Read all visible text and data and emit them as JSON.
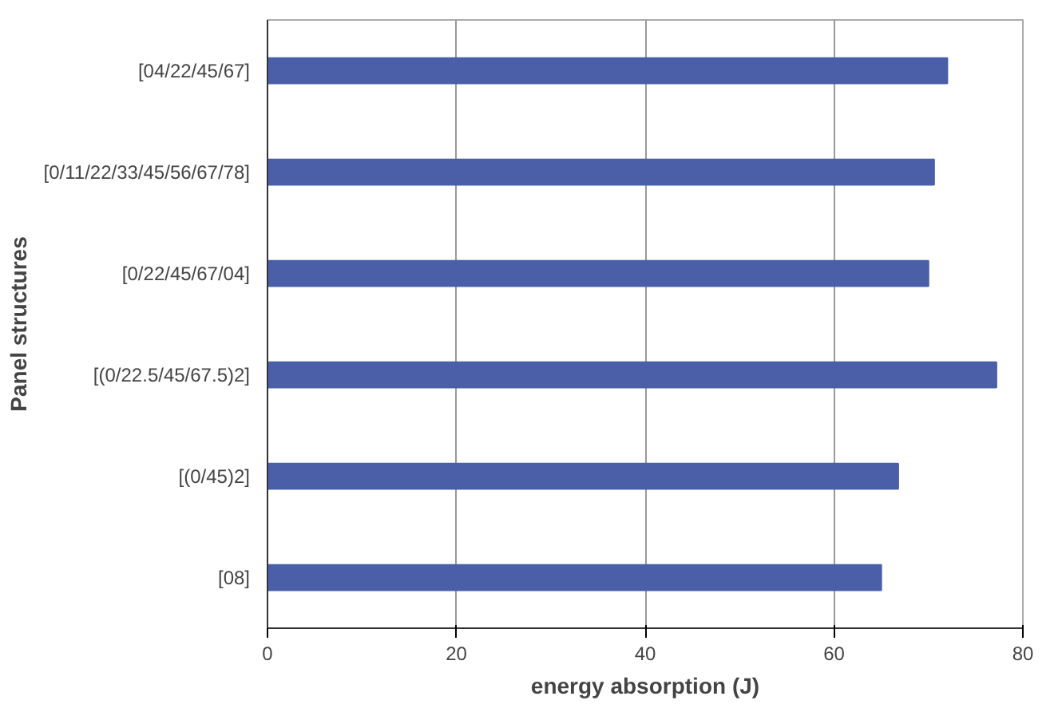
{
  "chart_data": {
    "type": "bar",
    "orientation": "horizontal",
    "xlabel": "energy absorption (J)",
    "ylabel": "Panel structures",
    "categories": [
      "[04/22/45/67]",
      "[0/11/22/33/45/56/67/78]",
      "[0/22/45/67/04]",
      "[(0/22.5/45/67.5)2]",
      "[(0/45)2]",
      "[08]"
    ],
    "values": [
      72,
      70.6,
      70,
      77.2,
      66.8,
      65
    ],
    "color": "#4a5fa8",
    "xlim": [
      0,
      80
    ],
    "xticks": [
      0,
      20,
      40,
      60,
      80
    ],
    "grid": "x"
  }
}
